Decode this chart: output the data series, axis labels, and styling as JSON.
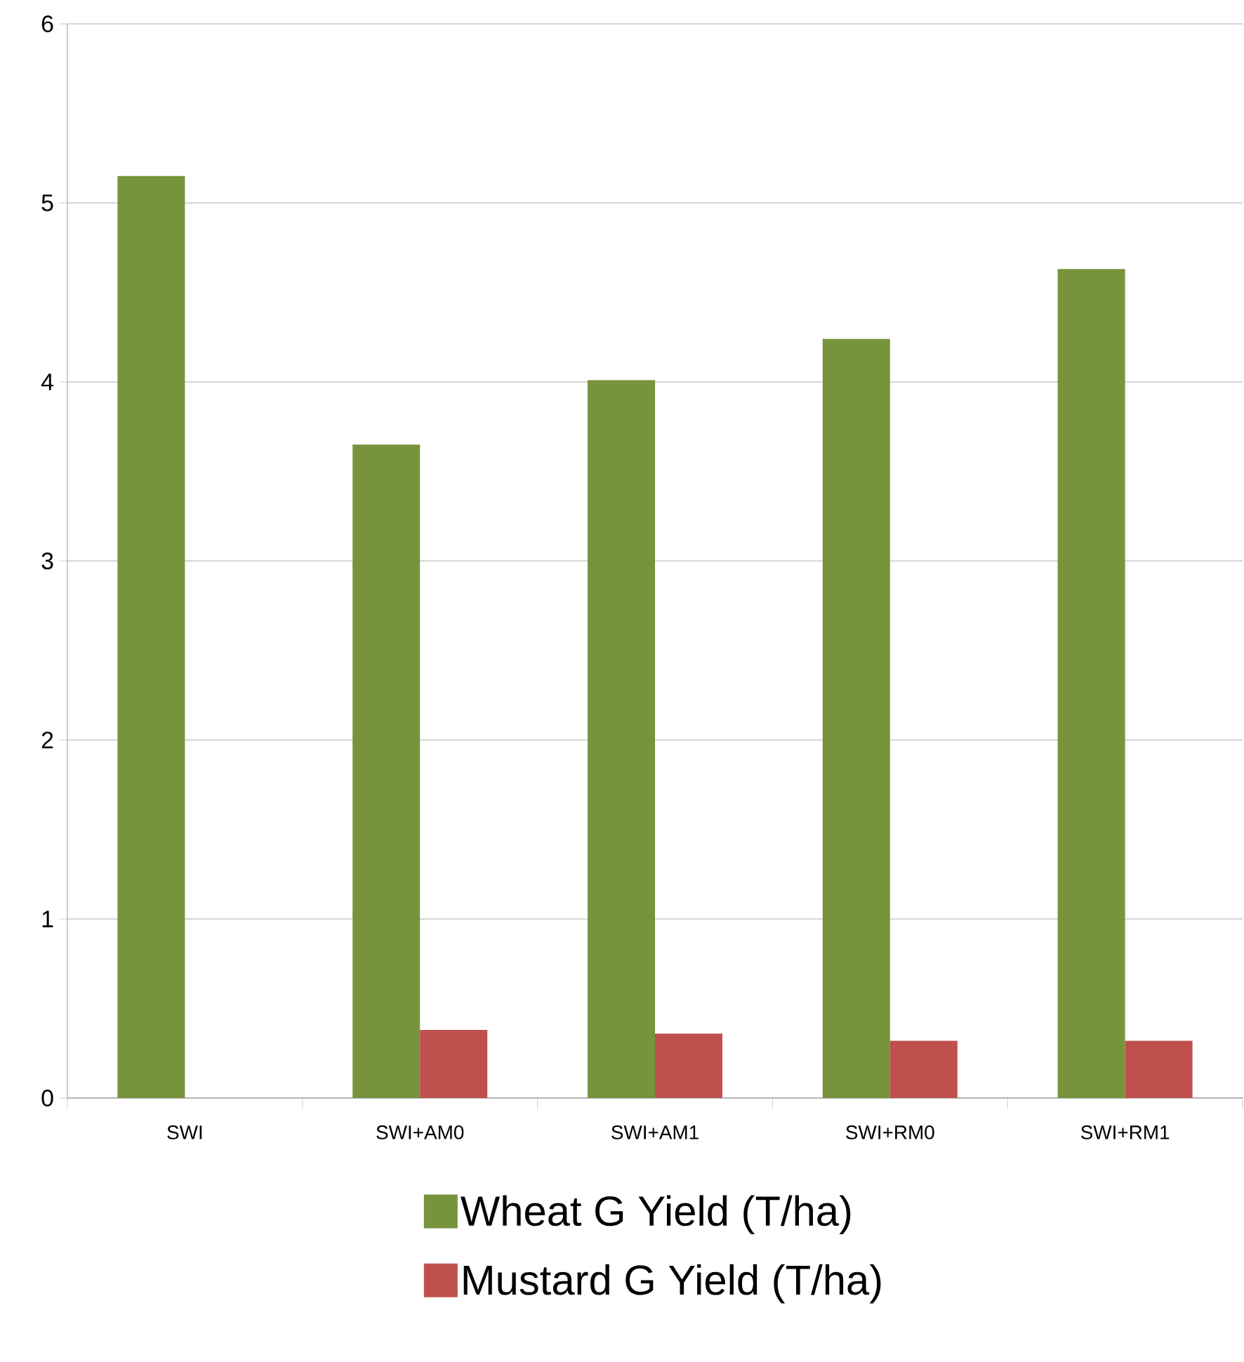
{
  "chart_data": {
    "type": "bar",
    "categories": [
      "SWI",
      "SWI+AM0",
      "SWI+AM1",
      "SWI+RM0",
      "SWI+RM1"
    ],
    "series": [
      {
        "name": "Wheat G Yield (T/ha)",
        "color": "#77933c",
        "values": [
          5.15,
          3.65,
          4.01,
          4.24,
          4.63
        ]
      },
      {
        "name": "Mustard G Yield (T/ha)",
        "color": "#c0504d",
        "values": [
          null,
          0.38,
          0.36,
          0.32,
          0.32
        ]
      }
    ],
    "ylim": [
      0,
      6
    ],
    "yticks": [
      0,
      1,
      2,
      3,
      4,
      5,
      6
    ],
    "grid": "y",
    "legend": "bottom"
  }
}
